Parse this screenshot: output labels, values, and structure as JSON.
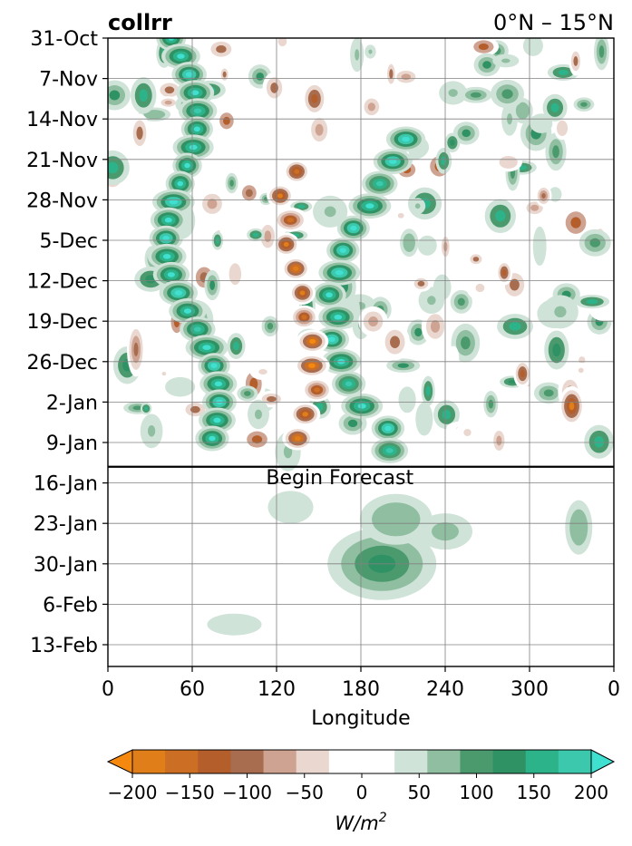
{
  "chart_data": {
    "type": "heatmap",
    "title_left": "collrr",
    "title_right": "0°N – 15°N",
    "xlabel": "Longitude",
    "x_ticks": [
      "0",
      "60",
      "120",
      "180",
      "240",
      "300",
      "0"
    ],
    "xlim": [
      0,
      360
    ],
    "y_ticks": [
      "31-Oct",
      "7-Nov",
      "14-Nov",
      "21-Nov",
      "28-Nov",
      "5-Dec",
      "12-Dec",
      "19-Dec",
      "26-Dec",
      "2-Jan",
      "9-Jan",
      "16-Jan",
      "23-Jan",
      "30-Jan",
      "6-Feb",
      "13-Feb"
    ],
    "y_direction": "time increases downward",
    "grid": true,
    "forecast_line_label": "Begin Forecast",
    "forecast_line_date": "between 9-Jan and 16-Jan",
    "colorbar": {
      "label": "W/m²",
      "label_base": "W/m",
      "label_exp": "2",
      "ticks": [
        "−200",
        "−150",
        "−100",
        "−50",
        "0",
        "50",
        "100",
        "150",
        "200"
      ],
      "levels": [
        -200,
        -175,
        -150,
        -125,
        -100,
        -75,
        -50,
        -25,
        25,
        50,
        75,
        100,
        125,
        150,
        175,
        200
      ],
      "colors": [
        "#f5880f",
        "#e07e19",
        "#cc6f24",
        "#b45e2c",
        "#a86c4f",
        "#cfa391",
        "#ead8d0",
        "#ffffff",
        "#ffffff",
        "#cfe3d8",
        "#8fbfa0",
        "#4a9a6e",
        "#2f9264",
        "#2db38a",
        "#3cc8ac",
        "#40e0d0"
      ],
      "extend": "both"
    },
    "features": [
      {
        "sign": "positive",
        "level": 150,
        "lon": [
          20,
          85
        ],
        "time": [
          "31-Oct",
          "12-Jan"
        ],
        "note": "enhanced band near 60E"
      },
      {
        "sign": "positive",
        "level": 150,
        "lon": [
          165,
          215
        ],
        "time": [
          "21-Nov",
          "9-Jan"
        ],
        "note": "enhanced region near 180"
      },
      {
        "sign": "negative",
        "level": -200,
        "lon": [
          120,
          165
        ],
        "time": [
          "28-Nov",
          "26-Dec"
        ],
        "note": "suppressed region near 140E"
      },
      {
        "sign": "negative",
        "level": -150,
        "lon": [
          320,
          345
        ],
        "time": [
          "28-Dec",
          "5-Jan"
        ],
        "note": "suppressed near 330"
      },
      {
        "sign": "positive",
        "level": 75,
        "lon": [
          160,
          230
        ],
        "time": [
          "20-Jan",
          "6-Feb"
        ],
        "note": "forecast enhanced region"
      }
    ]
  }
}
